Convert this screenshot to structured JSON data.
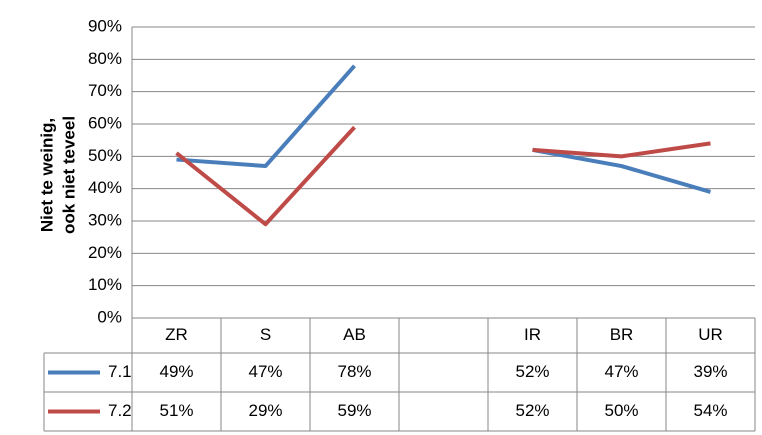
{
  "chart_data": {
    "type": "line",
    "ylabel": [
      "Niet te weinig,",
      "ook niet teveel"
    ],
    "categories": [
      "ZR",
      "S",
      "AB",
      null,
      "IR",
      "BR",
      "UR"
    ],
    "series": [
      {
        "name": "7.1",
        "color": "#4a7ebb",
        "values": [
          49,
          47,
          78,
          null,
          52,
          47,
          39
        ],
        "value_labels": [
          "49%",
          "47%",
          "78%",
          null,
          "52%",
          "47%",
          "39%"
        ]
      },
      {
        "name": "7.2",
        "color": "#be4b48",
        "values": [
          51,
          29,
          59,
          null,
          52,
          50,
          54
        ],
        "value_labels": [
          "51%",
          "29%",
          "59%",
          null,
          "52%",
          "50%",
          "54%"
        ]
      }
    ],
    "ylim": [
      0,
      90
    ],
    "yticks": [
      {
        "value": 0,
        "label": "0%"
      },
      {
        "value": 10,
        "label": "10%"
      },
      {
        "value": 20,
        "label": "20%"
      },
      {
        "value": 30,
        "label": "30%"
      },
      {
        "value": 40,
        "label": "40%"
      },
      {
        "value": 50,
        "label": "50%"
      },
      {
        "value": 60,
        "label": "60%"
      },
      {
        "value": 70,
        "label": "70%"
      },
      {
        "value": 80,
        "label": "80%"
      },
      {
        "value": 90,
        "label": "90%"
      }
    ],
    "grid": true
  }
}
